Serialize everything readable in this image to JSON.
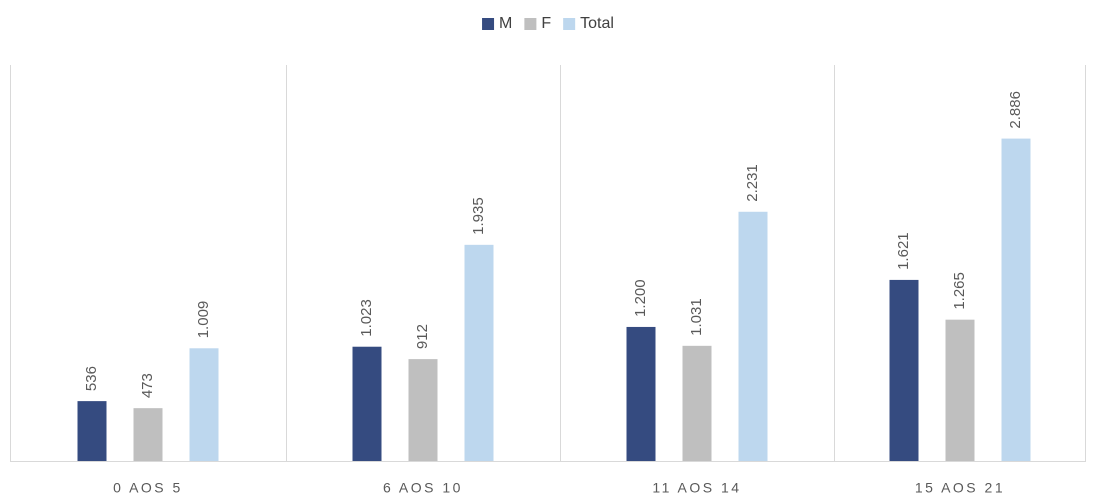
{
  "chart_data": {
    "type": "bar",
    "categories": [
      "0 AOS 5",
      "6 AOS 10",
      "11 AOS 14",
      "15 AOS 21"
    ],
    "series": [
      {
        "name": "M",
        "color": "#354b80",
        "values": [
          536,
          1023,
          1200,
          1621
        ],
        "value_labels": [
          "536",
          "1.023",
          "1.200",
          "1.621"
        ]
      },
      {
        "name": "F",
        "color": "#bfbfbf",
        "values": [
          473,
          912,
          1031,
          1265
        ],
        "value_labels": [
          "473",
          "912",
          "1.031",
          "1.265"
        ]
      },
      {
        "name": "Total",
        "color": "#bdd7ee",
        "values": [
          1009,
          1935,
          2231,
          2886
        ],
        "value_labels": [
          "1.009",
          "1.935",
          "2.231",
          "2.886"
        ]
      }
    ],
    "ylim": [
      0,
      3500
    ],
    "legend": "top"
  }
}
